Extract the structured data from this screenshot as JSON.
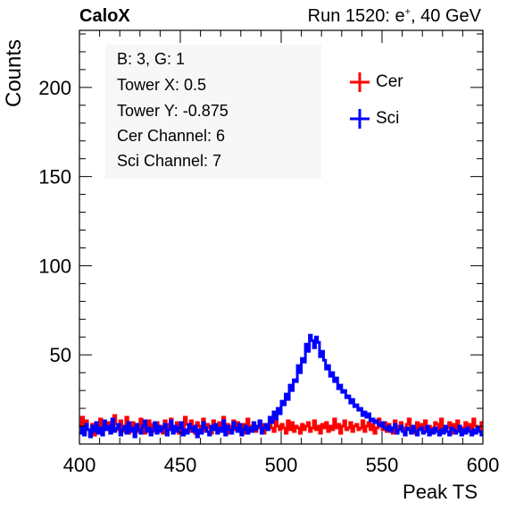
{
  "header": {
    "experiment": "CaloX",
    "run_label": "Run 1520: e",
    "run_superscript": "+",
    "run_energy": ", 40 GeV"
  },
  "info_box": {
    "lines": [
      "B: 3, G: 1",
      "Tower X: 0.5",
      "Tower Y: -0.875",
      "Cer Channel: 6",
      "Sci Channel: 7"
    ]
  },
  "chart_data": {
    "type": "line",
    "histogram": true,
    "xlabel": "Peak TS",
    "ylabel": "Counts",
    "xlim": [
      400,
      600
    ],
    "ylim": [
      0,
      232
    ],
    "x_ticks": [
      400,
      450,
      500,
      550,
      600
    ],
    "y_ticks": [
      50,
      100,
      150,
      200
    ],
    "grid": false,
    "legend_position": "top-right",
    "bin_width": 1,
    "x_start": 400,
    "series": [
      {
        "name": "Cer",
        "color": "#ff0000",
        "values": [
          10,
          15,
          7,
          13,
          8,
          6,
          11,
          5,
          12,
          9,
          14,
          7,
          10,
          8,
          12,
          6,
          9,
          16,
          11,
          8,
          13,
          7,
          10,
          15,
          6,
          9,
          12,
          8,
          11,
          7,
          14,
          9,
          6,
          10,
          13,
          8,
          11,
          7,
          12,
          9,
          10,
          6,
          13,
          8,
          11,
          14,
          7,
          9,
          12,
          6,
          10,
          8,
          15,
          11,
          7,
          13,
          9,
          6,
          12,
          10,
          8,
          14,
          7,
          11,
          9,
          6,
          13,
          10,
          8,
          12,
          7,
          15,
          9,
          11,
          6,
          10,
          13,
          8,
          12,
          7,
          9,
          11,
          6,
          14,
          8,
          10,
          12,
          7,
          9,
          13,
          11,
          6,
          10,
          8,
          12,
          9,
          7,
          14,
          10,
          8,
          11,
          9,
          6,
          13,
          8,
          12,
          7,
          10,
          9,
          6,
          11,
          8,
          10,
          12,
          7,
          9,
          13,
          8,
          10,
          6,
          11,
          9,
          12,
          7,
          10,
          8,
          14,
          9,
          11,
          6,
          10,
          13,
          8,
          9,
          12,
          7,
          10,
          11,
          8,
          9,
          13,
          7,
          10,
          12,
          8,
          11,
          6,
          9,
          14,
          10,
          8,
          12,
          7,
          11,
          9,
          6,
          13,
          10,
          8,
          12,
          7,
          9,
          11,
          14,
          8,
          10,
          6,
          12,
          9,
          11,
          7,
          13,
          8,
          10,
          9,
          6,
          12,
          11,
          8,
          14,
          7,
          10,
          9,
          12,
          6,
          11,
          8,
          13,
          10,
          7,
          9,
          12,
          8,
          11,
          6,
          14,
          10,
          9,
          7,
          12
        ]
      },
      {
        "name": "Sci",
        "color": "#0000ff",
        "values": [
          6,
          9,
          5,
          11,
          8,
          4,
          10,
          7,
          12,
          6,
          9,
          5,
          13,
          8,
          10,
          6,
          14,
          7,
          9,
          11,
          5,
          8,
          10,
          6,
          12,
          7,
          9,
          4,
          11,
          8,
          6,
          10,
          13,
          7,
          9,
          5,
          8,
          12,
          6,
          10,
          7,
          9,
          11,
          5,
          8,
          13,
          6,
          10,
          7,
          9,
          12,
          5,
          8,
          6,
          11,
          9,
          7,
          10,
          4,
          8,
          6,
          12,
          9,
          7,
          5,
          10,
          8,
          11,
          6,
          9,
          7,
          13,
          5,
          10,
          8,
          6,
          12,
          9,
          7,
          11,
          5,
          8,
          10,
          6,
          9,
          7,
          12,
          8,
          10,
          13,
          6,
          9,
          11,
          8,
          15,
          12,
          18,
          14,
          20,
          17,
          24,
          22,
          28,
          25,
          33,
          30,
          36,
          35,
          44,
          40,
          48,
          46,
          56,
          52,
          61,
          58,
          54,
          60,
          57,
          49,
          52,
          47,
          42,
          44,
          38,
          40,
          35,
          37,
          31,
          33,
          29,
          30,
          26,
          27,
          23,
          25,
          21,
          22,
          19,
          20,
          16,
          18,
          15,
          17,
          13,
          14,
          12,
          13,
          11,
          10,
          12,
          9,
          8,
          10,
          7,
          9,
          11,
          6,
          8,
          10,
          7,
          5,
          9,
          8,
          6,
          10,
          7,
          5,
          8,
          9,
          6,
          7,
          10,
          5,
          8,
          6,
          9,
          7,
          5,
          8,
          6,
          10,
          7,
          5,
          9,
          8,
          6,
          7,
          10,
          5,
          8,
          6,
          9,
          7,
          5,
          8,
          6,
          9,
          7,
          5
        ]
      }
    ]
  }
}
